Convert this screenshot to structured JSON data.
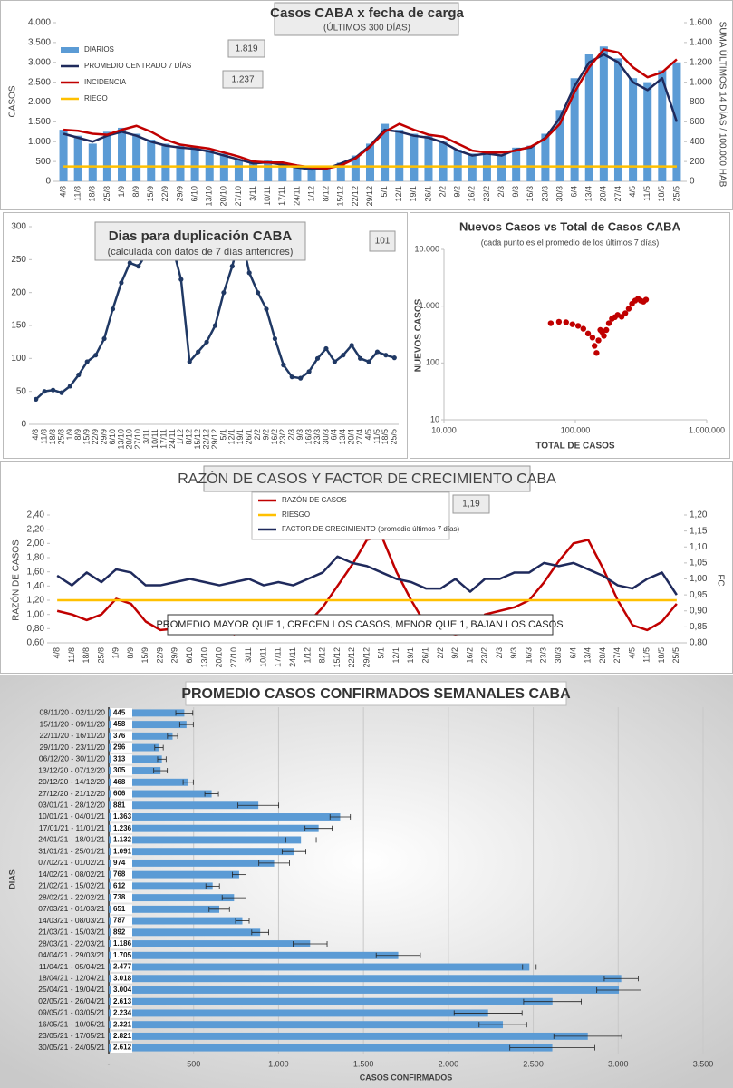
{
  "chart_data": [
    {
      "type": "combo",
      "title": "Casos CABA x fecha de carga",
      "subtitle": "(ÚLTIMOS 300 DÍAS)",
      "ylabel": "CASOS",
      "y2label": "SUMA ÚLTIMOS 14 DÍAS / 100.000 HAB",
      "annotations": [
        "1.819",
        "1.237"
      ],
      "legend": "upper left",
      "categories": [
        "4/8",
        "11/8",
        "18/8",
        "25/8",
        "1/9",
        "8/9",
        "15/9",
        "22/9",
        "29/9",
        "6/10",
        "13/10",
        "20/10",
        "27/10",
        "3/11",
        "10/11",
        "17/11",
        "24/11",
        "1/12",
        "8/12",
        "15/12",
        "22/12",
        "29/12",
        "5/1",
        "12/1",
        "19/1",
        "26/1",
        "2/2",
        "9/2",
        "16/2",
        "23/2",
        "2/3",
        "9/3",
        "16/3",
        "23/3",
        "30/3",
        "6/4",
        "13/4",
        "20/4",
        "27/4",
        "4/5",
        "11/5",
        "18/5",
        "25/5"
      ],
      "ylim": [
        0,
        4000
      ],
      "yticks": [
        0,
        500,
        {
          "value": 1000,
          "label": "1.000"
        },
        {
          "value": 1500,
          "label": "1.500"
        },
        {
          "value": 2000,
          "label": "2.000"
        },
        {
          "value": 2500,
          "label": "2.500"
        },
        {
          "value": 3000,
          "label": "3.000"
        },
        {
          "value": 3500,
          "label": "3.500"
        },
        {
          "value": 4000,
          "label": "4.000"
        }
      ],
      "y2lim": [
        0,
        1600
      ],
      "y2ticks": [
        0,
        200,
        400,
        600,
        800,
        {
          "value": 1000,
          "label": "1.000"
        },
        {
          "value": 1200,
          "label": "1.200"
        },
        {
          "value": 1400,
          "label": "1.400"
        },
        {
          "value": 1600,
          "label": "1.600"
        }
      ],
      "series": [
        {
          "name": "DIARIOS",
          "kind": "bar",
          "color": "#5b9bd5",
          "values": [
            1300,
            1150,
            950,
            1250,
            1350,
            1200,
            1050,
            950,
            900,
            870,
            800,
            700,
            560,
            480,
            520,
            430,
            380,
            320,
            330,
            470,
            650,
            950,
            1450,
            1300,
            1200,
            1150,
            1000,
            800,
            700,
            750,
            680,
            850,
            900,
            1200,
            1800,
            2600,
            3200,
            3400,
            3100,
            2600,
            2500,
            2800,
            3000
          ]
        },
        {
          "name": "PROMEDIO CENTRADO 7 DÍAS",
          "kind": "line",
          "color": "#1f2a5c",
          "values": [
            1200,
            1100,
            1000,
            1150,
            1250,
            1150,
            1000,
            900,
            850,
            820,
            750,
            650,
            550,
            450,
            480,
            420,
            350,
            300,
            320,
            450,
            600,
            900,
            1300,
            1250,
            1150,
            1100,
            980,
            780,
            650,
            700,
            650,
            800,
            850,
            1100,
            1600,
            2400,
            3000,
            3200,
            3000,
            2500,
            2300,
            2600,
            1500
          ]
        },
        {
          "name": "INCIDENCIA",
          "kind": "line",
          "axis": "y2",
          "color": "#c00000",
          "values": [
            520,
            510,
            480,
            470,
            520,
            560,
            500,
            420,
            370,
            350,
            330,
            290,
            250,
            200,
            190,
            190,
            160,
            140,
            130,
            160,
            230,
            350,
            500,
            580,
            520,
            470,
            450,
            380,
            310,
            290,
            290,
            310,
            350,
            430,
            580,
            900,
            1150,
            1330,
            1300,
            1150,
            1050,
            1100,
            1230
          ]
        },
        {
          "name": "RIEGO",
          "kind": "line",
          "axis": "y2",
          "color": "#ffc000",
          "values": [
            150,
            150,
            150,
            150,
            150,
            150,
            150,
            150,
            150,
            150,
            150,
            150,
            150,
            150,
            150,
            150,
            150,
            150,
            150,
            150,
            150,
            150,
            150,
            150,
            150,
            150,
            150,
            150,
            150,
            150,
            150,
            150,
            150,
            150,
            150,
            150,
            150,
            150,
            150,
            150,
            150,
            150,
            150
          ]
        }
      ]
    },
    {
      "type": "line",
      "title": "Dias para duplicación CABA",
      "subtitle": "(calculada con datos de 7 días anteriores)",
      "annotations": [
        "101"
      ],
      "categories": [
        "4/8",
        "11/8",
        "18/8",
        "25/8",
        "1/9",
        "8/9",
        "15/9",
        "22/9",
        "29/9",
        "6/10",
        "13/10",
        "20/10",
        "27/10",
        "3/11",
        "10/11",
        "17/11",
        "24/11",
        "1/12",
        "8/12",
        "15/12",
        "22/12",
        "29/12",
        "5/1",
        "12/1",
        "19/1",
        "26/1",
        "2/2",
        "9/2",
        "16/2",
        "23/2",
        "2/3",
        "9/3",
        "16/3",
        "23/3",
        "30/3",
        "6/4",
        "13/4",
        "20/4",
        "27/4",
        "4/5",
        "11/5",
        "18/5",
        "25/5"
      ],
      "ylim": [
        0,
        300
      ],
      "yticks": [
        0,
        50,
        100,
        150,
        200,
        250,
        300
      ],
      "series": [
        {
          "kind": "line",
          "markers": true,
          "color": "#1f3864",
          "values": [
            38,
            50,
            52,
            48,
            58,
            75,
            95,
            105,
            130,
            175,
            215,
            245,
            240,
            260,
            280,
            300,
            270,
            220,
            95,
            110,
            125,
            150,
            200,
            240,
            290,
            230,
            200,
            175,
            130,
            90,
            72,
            70,
            80,
            100,
            115,
            95,
            105,
            120,
            100,
            95,
            110,
            105,
            101
          ]
        }
      ]
    },
    {
      "type": "scatter",
      "title": "Nuevos Casos vs Total de Casos CABA",
      "subtitle": "(cada punto es el promedio de los últimos 7 días)",
      "xlabel": "TOTAL DE CASOS",
      "ylabel": "NUEVOS CASOS",
      "xlog": true,
      "ylog": true,
      "xlim": [
        10000,
        1000000
      ],
      "ylim": [
        10,
        10000
      ],
      "xticks": [
        {
          "value": 10000,
          "label": "10.000"
        },
        {
          "value": 100000,
          "label": "100.000"
        },
        {
          "value": 1000000,
          "label": "1.000.000"
        }
      ],
      "yticks": [
        10,
        100,
        {
          "value": 1000,
          "label": "1.000"
        },
        {
          "value": 10000,
          "label": "10.000"
        }
      ],
      "color": "#c00000",
      "x": [
        65000,
        75000,
        85000,
        95000,
        105000,
        115000,
        125000,
        135000,
        140000,
        145000,
        150000,
        155000,
        160000,
        165000,
        172000,
        180000,
        190000,
        200000,
        210000,
        225000,
        240000,
        255000,
        270000,
        285000,
        300000,
        315000,
        330000,
        345000
      ],
      "y": [
        500,
        530,
        520,
        480,
        450,
        400,
        330,
        280,
        200,
        150,
        250,
        380,
        350,
        300,
        380,
        500,
        600,
        640,
        700,
        650,
        750,
        900,
        1100,
        1250,
        1350,
        1250,
        1200,
        1300
      ]
    },
    {
      "type": "line",
      "title": "RAZÓN DE CASOS Y FACTOR DE CRECIMIENTO CABA",
      "ylabel": "RAZÓN DE CASOS",
      "y2label": "FC",
      "annotations": [
        "1,19"
      ],
      "note": "PROMEDIO MAYOR QUE 1, CRECEN LOS CASOS, MENOR QUE 1, BAJAN LOS CASOS",
      "legend": "upper center",
      "categories": [
        "4/8",
        "11/8",
        "18/8",
        "25/8",
        "1/9",
        "8/9",
        "15/9",
        "22/9",
        "29/9",
        "6/10",
        "13/10",
        "20/10",
        "27/10",
        "3/11",
        "10/11",
        "17/11",
        "24/11",
        "1/12",
        "8/12",
        "15/12",
        "22/12",
        "29/12",
        "5/1",
        "12/1",
        "19/1",
        "26/1",
        "2/2",
        "9/2",
        "16/2",
        "23/2",
        "2/3",
        "9/3",
        "16/3",
        "23/3",
        "30/3",
        "6/4",
        "13/4",
        "20/4",
        "27/4",
        "4/5",
        "11/5",
        "18/5",
        "25/5"
      ],
      "ylim": [
        0.6,
        2.4
      ],
      "yticks": [
        {
          "value": 0.6,
          "label": "0,60"
        },
        {
          "value": 0.8,
          "label": "0,80"
        },
        {
          "value": 1.0,
          "label": "1,00"
        },
        {
          "value": 1.2,
          "label": "1,20"
        },
        {
          "value": 1.4,
          "label": "1,40"
        },
        {
          "value": 1.6,
          "label": "1,60"
        },
        {
          "value": 1.8,
          "label": "1,80"
        },
        {
          "value": 2.0,
          "label": "2,00"
        },
        {
          "value": 2.2,
          "label": "2,20"
        },
        {
          "value": 2.4,
          "label": "2,40"
        }
      ],
      "y2lim": [
        0.8,
        1.2
      ],
      "y2ticks": [
        {
          "value": 0.8,
          "label": "0,80"
        },
        {
          "value": 0.85,
          "label": "0,85"
        },
        {
          "value": 0.9,
          "label": "0,90"
        },
        {
          "value": 0.95,
          "label": "0,95"
        },
        {
          "value": 1.0,
          "label": "1,00"
        },
        {
          "value": 1.05,
          "label": "1,05"
        },
        {
          "value": 1.1,
          "label": "1,10"
        },
        {
          "value": 1.15,
          "label": "1,15"
        },
        {
          "value": 1.2,
          "label": "1,20"
        }
      ],
      "series": [
        {
          "name": "RAZÓN DE CASOS",
          "kind": "line",
          "color": "#c00000",
          "values": [
            1.05,
            1.0,
            0.92,
            1.0,
            1.22,
            1.15,
            0.9,
            0.78,
            0.8,
            0.9,
            0.88,
            0.78,
            0.72,
            0.8,
            0.92,
            0.85,
            0.78,
            0.88,
            1.1,
            1.4,
            1.7,
            2.05,
            2.1,
            1.6,
            1.2,
            0.85,
            0.75,
            0.72,
            0.75,
            1.0,
            1.05,
            1.1,
            1.2,
            1.45,
            1.75,
            2.0,
            2.05,
            1.65,
            1.2,
            0.85,
            0.78,
            0.9,
            1.15
          ]
        },
        {
          "name": "RIESGO",
          "kind": "line",
          "color": "#ffc000",
          "values": [
            1.2,
            1.2,
            1.2,
            1.2,
            1.2,
            1.2,
            1.2,
            1.2,
            1.2,
            1.2,
            1.2,
            1.2,
            1.2,
            1.2,
            1.2,
            1.2,
            1.2,
            1.2,
            1.2,
            1.2,
            1.2,
            1.2,
            1.2,
            1.2,
            1.2,
            1.2,
            1.2,
            1.2,
            1.2,
            1.2,
            1.2,
            1.2,
            1.2,
            1.2,
            1.2,
            1.2,
            1.2,
            1.2,
            1.2,
            1.2,
            1.2,
            1.2,
            1.2
          ]
        },
        {
          "name": "FACTOR DE CRECIMIENTO (promedio últimos 7 días)",
          "kind": "line",
          "axis": "y2",
          "color": "#1f2a5c",
          "values": [
            1.01,
            0.98,
            1.02,
            0.99,
            1.03,
            1.02,
            0.98,
            0.98,
            0.99,
            1.0,
            0.99,
            0.98,
            0.99,
            1.0,
            0.98,
            0.99,
            0.98,
            1.0,
            1.02,
            1.07,
            1.05,
            1.04,
            1.02,
            1.0,
            0.99,
            0.97,
            0.97,
            1.0,
            0.96,
            1.0,
            1.0,
            1.02,
            1.02,
            1.05,
            1.04,
            1.05,
            1.03,
            1.01,
            0.98,
            0.97,
            1.0,
            1.02,
            0.95
          ]
        }
      ]
    },
    {
      "type": "bar",
      "orientation": "horizontal",
      "title": "PROMEDIO CASOS CONFIRMADOS SEMANALES CABA",
      "xlabel": "CASOS CONFIRMADOS",
      "ylabel": "DIAS",
      "grid": true,
      "color": "#5b9bd5",
      "xlim": [
        0,
        3500
      ],
      "xticks": [
        {
          "value": 0,
          "label": "-"
        },
        500,
        {
          "value": 1000,
          "label": "1.000"
        },
        {
          "value": 1500,
          "label": "1.500"
        },
        {
          "value": 2000,
          "label": "2.000"
        },
        {
          "value": 2500,
          "label": "2.500"
        },
        {
          "value": 3000,
          "label": "3.000"
        },
        {
          "value": 3500,
          "label": "3.500"
        }
      ],
      "categories": [
        "08/11/20 - 02/11/20",
        "15/11/20 - 09/11/20",
        "22/11/20 - 16/11/20",
        "29/11/20 - 23/11/20",
        "06/12/20 - 30/11/20",
        "13/12/20 - 07/12/20",
        "20/12/20 - 14/12/20",
        "27/12/20 - 21/12/20",
        "03/01/21 - 28/12/20",
        "10/01/21 - 04/01/21",
        "17/01/21 - 11/01/21",
        "24/01/21 - 18/01/21",
        "31/01/21 - 25/01/21",
        "07/02/21 - 01/02/21",
        "14/02/21 - 08/02/21",
        "21/02/21 - 15/02/21",
        "28/02/21 - 22/02/21",
        "07/03/21 - 01/03/21",
        "14/03/21 - 08/03/21",
        "21/03/21 - 15/03/21",
        "28/03/21 - 22/03/21",
        "04/04/21 - 29/03/21",
        "11/04/21 - 05/04/21",
        "18/04/21 - 12/04/21",
        "25/04/21 - 19/04/21",
        "02/05/21 - 26/04/21",
        "09/05/21 - 03/05/21",
        "16/05/21 - 10/05/21",
        "23/05/21 - 17/05/21",
        "30/05/21 - 24/05/21"
      ],
      "values": [
        445,
        458,
        376,
        296,
        313,
        305,
        468,
        606,
        881,
        1363,
        1236,
        1132,
        1091,
        974,
        768,
        612,
        738,
        651,
        787,
        892,
        1186,
        1705,
        2477,
        3018,
        3004,
        2613,
        2234,
        2321,
        2821,
        2612
      ],
      "value_labels": [
        "445",
        "458",
        "376",
        "296",
        "313",
        "305",
        "468",
        "606",
        "881",
        "1.363",
        "1.236",
        "1.132",
        "1.091",
        "974",
        "768",
        "612",
        "738",
        "651",
        "787",
        "892",
        "1.186",
        "1.705",
        "2.477",
        "3.018",
        "3.004",
        "2.613",
        "2.234",
        "2.321",
        "2.821",
        "2.612"
      ],
      "errors": [
        50,
        40,
        30,
        25,
        25,
        40,
        30,
        40,
        120,
        60,
        80,
        90,
        70,
        90,
        40,
        40,
        70,
        60,
        40,
        50,
        100,
        130,
        40,
        100,
        130,
        170,
        200,
        140,
        200,
        250
      ]
    }
  ]
}
